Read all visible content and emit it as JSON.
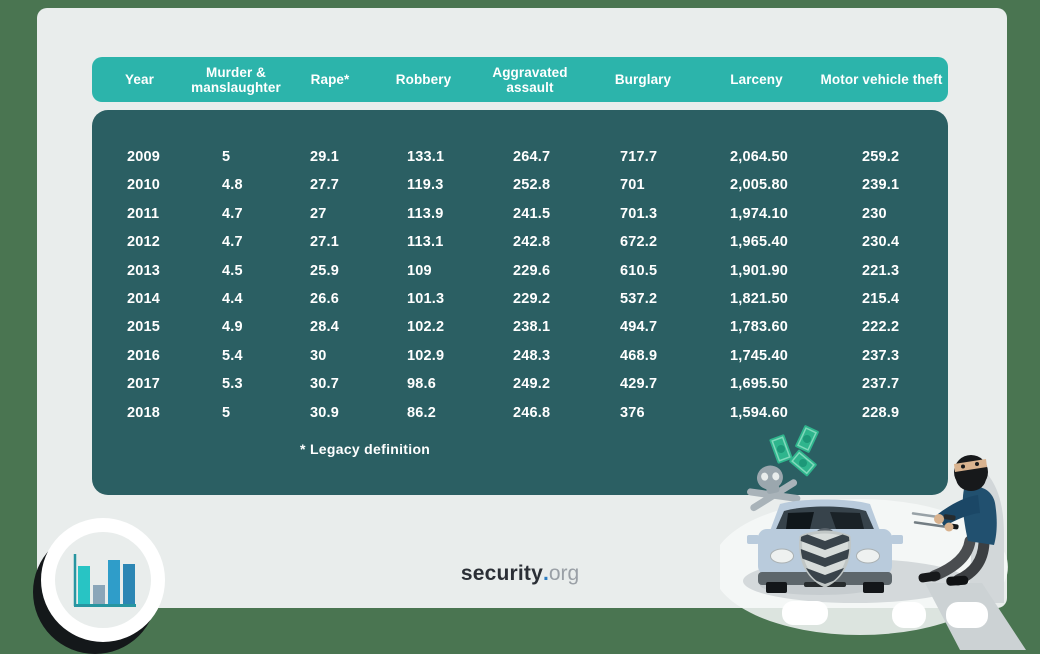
{
  "theme": {
    "page_bg": "#4a7551",
    "card_bg": "#e9edec",
    "table_header_bg": "#2cb4ab",
    "table_body_bg": "#2b5f63",
    "table_text": "#ffffff",
    "brand_dark": "#2b2f36",
    "brand_dot": "#2d7dc1",
    "brand_gray": "#9aa0a6"
  },
  "table": {
    "columns": [
      "Year",
      "Murder & manslaughter",
      "Rape*",
      "Robbery",
      "Aggravated assault",
      "Burglary",
      "Larceny",
      "Motor vehicle theft"
    ],
    "rows": [
      [
        "2009",
        "5",
        "29.1",
        "133.1",
        "264.7",
        "717.7",
        "2,064.50",
        "259.2"
      ],
      [
        "2010",
        "4.8",
        "27.7",
        "119.3",
        "252.8",
        "701",
        "2,005.80",
        "239.1"
      ],
      [
        "2011",
        "4.7",
        "27",
        "113.9",
        "241.5",
        "701.3",
        "1,974.10",
        "230"
      ],
      [
        "2012",
        "4.7",
        "27.1",
        "113.1",
        "242.8",
        "672.2",
        "1,965.40",
        "230.4"
      ],
      [
        "2013",
        "4.5",
        "25.9",
        "109",
        "229.6",
        "610.5",
        "1,901.90",
        "221.3"
      ],
      [
        "2014",
        "4.4",
        "26.6",
        "101.3",
        "229.2",
        "537.2",
        "1,821.50",
        "215.4"
      ],
      [
        "2015",
        "4.9",
        "28.4",
        "102.2",
        "238.1",
        "494.7",
        "1,783.60",
        "222.2"
      ],
      [
        "2016",
        "5.4",
        "30",
        "102.9",
        "248.3",
        "468.9",
        "1,745.40",
        "237.3"
      ],
      [
        "2017",
        "5.3",
        "30.7",
        "98.6",
        "249.2",
        "429.7",
        "1,695.50",
        "237.7"
      ],
      [
        "2018",
        "5",
        "30.9",
        "86.2",
        "246.8",
        "376",
        "1,594.60",
        "228.9"
      ]
    ],
    "footnote": "* Legacy definition"
  },
  "footer": {
    "brand_security": "security",
    "brand_dot": ".",
    "brand_org": "org"
  },
  "icons": {
    "badge": "bar-chart-icon",
    "bottom_right": "car-theft-illustration",
    "skull": "skull-crossbones-icon",
    "money": "money-bills-icon"
  },
  "chart_data": {
    "type": "table",
    "columns": [
      "Year",
      "Murder & manslaughter",
      "Rape*",
      "Robbery",
      "Aggravated assault",
      "Burglary",
      "Larceny",
      "Motor vehicle theft"
    ],
    "rows": [
      [
        2009,
        5,
        29.1,
        133.1,
        264.7,
        717.7,
        2064.5,
        259.2
      ],
      [
        2010,
        4.8,
        27.7,
        119.3,
        252.8,
        701,
        2005.8,
        239.1
      ],
      [
        2011,
        4.7,
        27,
        113.9,
        241.5,
        701.3,
        1974.1,
        230
      ],
      [
        2012,
        4.7,
        27.1,
        113.1,
        242.8,
        672.2,
        1965.4,
        230.4
      ],
      [
        2013,
        4.5,
        25.9,
        109,
        229.6,
        610.5,
        1901.9,
        221.3
      ],
      [
        2014,
        4.4,
        26.6,
        101.3,
        229.2,
        537.2,
        1821.5,
        215.4
      ],
      [
        2015,
        4.9,
        28.4,
        102.2,
        238.1,
        494.7,
        1783.6,
        222.2
      ],
      [
        2016,
        5.4,
        30,
        102.9,
        248.3,
        468.9,
        1745.4,
        237.3
      ],
      [
        2017,
        5.3,
        30.7,
        98.6,
        249.2,
        429.7,
        1695.5,
        237.7
      ],
      [
        2018,
        5,
        30.9,
        86.2,
        246.8,
        376,
        1594.6,
        228.9
      ]
    ],
    "footnote": "* Legacy definition"
  }
}
